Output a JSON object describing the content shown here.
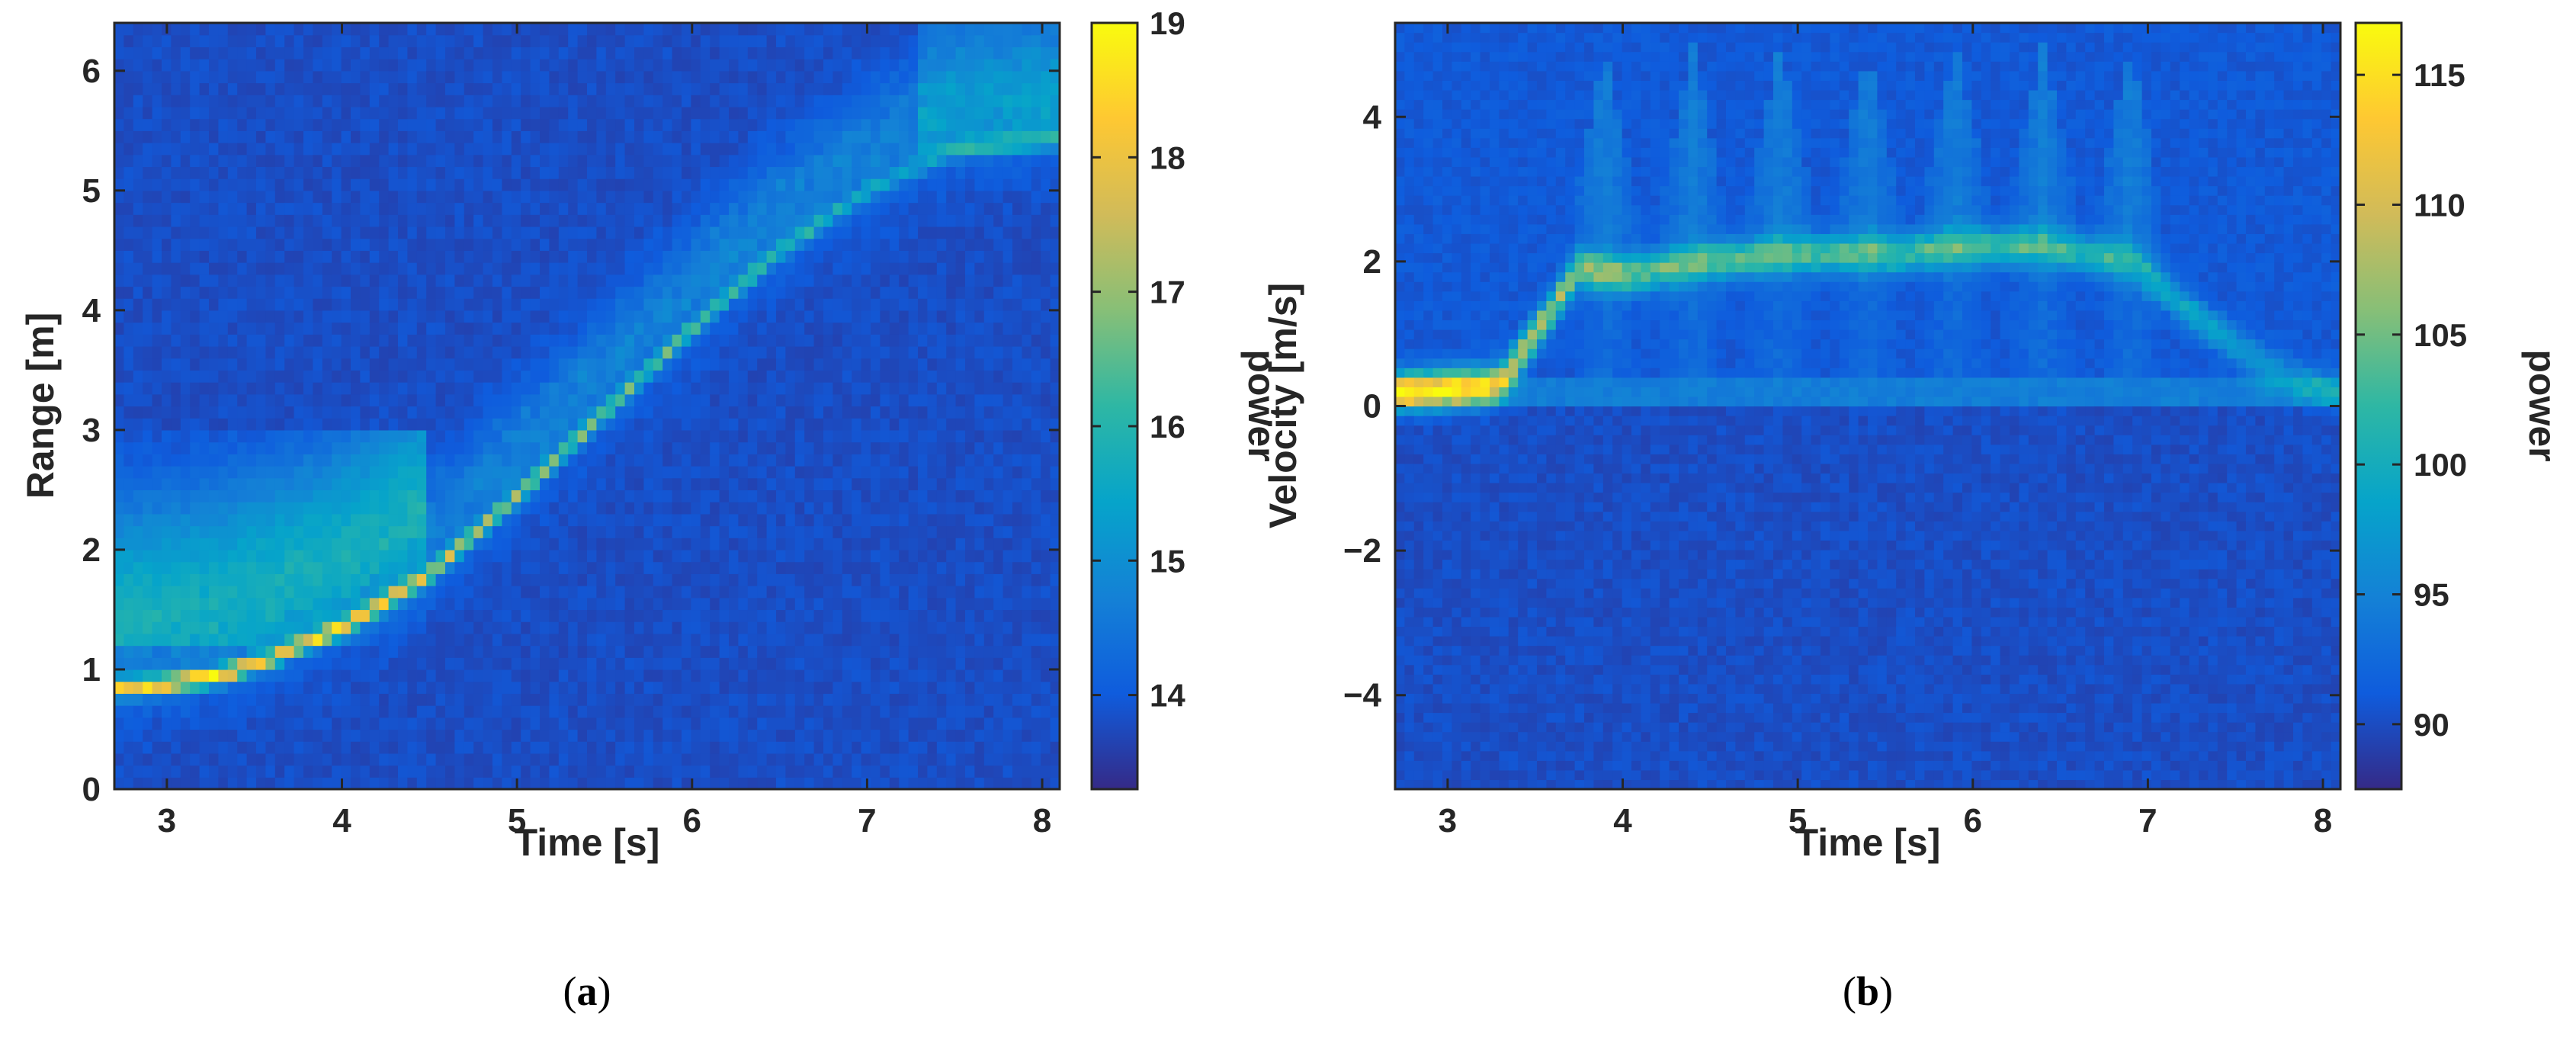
{
  "panels": [
    {
      "id": "a",
      "caption_letter": "a",
      "caption_open": "(",
      "caption_close": ")"
    },
    {
      "id": "b",
      "caption_letter": "b",
      "caption_open": "(",
      "caption_close": ")"
    }
  ],
  "chart_data": [
    {
      "type": "heatmap",
      "title": "",
      "xlabel": "Time [s]",
      "ylabel": "Range [m]",
      "colorbar_label": "power",
      "colormap": "parula",
      "xlim": [
        2.7,
        8.1
      ],
      "ylim": [
        0,
        6.4
      ],
      "xticks": [
        3,
        4,
        5,
        6,
        7,
        8
      ],
      "yticks": [
        0,
        1,
        2,
        3,
        4,
        5,
        6
      ],
      "clim": [
        13.3,
        19
      ],
      "cbticks": [
        14,
        15,
        16,
        17,
        18,
        19
      ],
      "background_level": 13.8,
      "ridge": {
        "description_of_values": "range of the strongest return over time",
        "points": [
          [
            2.75,
            0.85
          ],
          [
            3.0,
            0.88
          ],
          [
            3.3,
            0.95
          ],
          [
            3.6,
            1.1
          ],
          [
            4.0,
            1.35
          ],
          [
            4.5,
            1.8
          ],
          [
            5.0,
            2.45
          ],
          [
            5.5,
            3.15
          ],
          [
            6.0,
            3.85
          ],
          [
            6.5,
            4.5
          ],
          [
            7.0,
            5.0
          ],
          [
            7.5,
            5.35
          ],
          [
            8.05,
            5.45
          ]
        ],
        "peak_values": [
          [
            2.8,
            18.2
          ],
          [
            3.2,
            18.6
          ],
          [
            3.6,
            17.8
          ],
          [
            4.2,
            17.6
          ],
          [
            4.8,
            16.8
          ],
          [
            5.5,
            16.2
          ],
          [
            6.2,
            15.8
          ],
          [
            7.0,
            15.2
          ],
          [
            8.0,
            15.0
          ]
        ]
      }
    },
    {
      "type": "heatmap",
      "title": "",
      "xlabel": "Time [s]",
      "ylabel": "Velocity [m/s]",
      "colorbar_label": "power",
      "colormap": "parula",
      "xlim": [
        2.7,
        8.1
      ],
      "ylim": [
        -5.3,
        5.3
      ],
      "xticks": [
        3,
        4,
        5,
        6,
        7,
        8
      ],
      "yticks": [
        -4,
        -2,
        0,
        2,
        4
      ],
      "clim": [
        87.5,
        117
      ],
      "cbticks": [
        90,
        95,
        100,
        105,
        110,
        115
      ],
      "background_level": 91,
      "ridge": {
        "description_of_values": "dominant velocity over time",
        "points": [
          [
            2.7,
            0.2
          ],
          [
            3.3,
            0.3
          ],
          [
            3.5,
            1.0
          ],
          [
            3.75,
            1.9
          ],
          [
            4.0,
            1.8
          ],
          [
            4.5,
            2.0
          ],
          [
            5.0,
            2.1
          ],
          [
            5.5,
            2.1
          ],
          [
            6.0,
            2.2
          ],
          [
            6.4,
            2.2
          ],
          [
            6.9,
            2.0
          ],
          [
            7.3,
            1.2
          ],
          [
            7.7,
            0.5
          ],
          [
            8.05,
            0.2
          ]
        ],
        "peak_values": [
          [
            2.8,
            114
          ],
          [
            3.1,
            115
          ],
          [
            3.4,
            110
          ],
          [
            3.75,
            106
          ],
          [
            4.5,
            104
          ],
          [
            5.5,
            103
          ],
          [
            6.3,
            103
          ],
          [
            7.0,
            100
          ],
          [
            7.8,
            97
          ]
        ],
        "spikes_at_time": [
          3.9,
          4.4,
          4.9,
          5.4,
          5.9,
          6.4,
          6.9
        ]
      }
    }
  ]
}
